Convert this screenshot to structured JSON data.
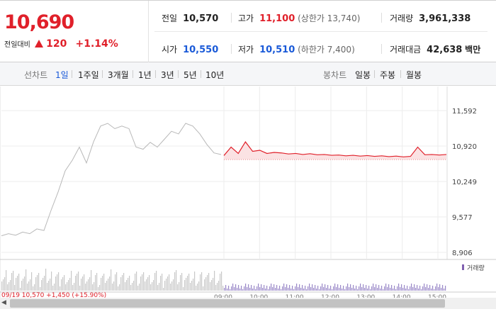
{
  "summary": {
    "price": "10,690",
    "change_label": "전일대비",
    "change_abs": "120",
    "change_pct": "+1.14%",
    "prev_close": {
      "label": "전일",
      "value": "10,570"
    },
    "open": {
      "label": "시가",
      "value": "10,550"
    },
    "high": {
      "label": "고가",
      "value": "11,100",
      "limit_note": "(상한가 13,740)"
    },
    "low": {
      "label": "저가",
      "value": "10,510",
      "limit_note": "(하한가 7,400)"
    },
    "volume": {
      "label": "거래량",
      "value": "3,961,338"
    },
    "trade_value": {
      "label": "거래대금",
      "value": "42,638",
      "unit": "백만"
    },
    "colors": {
      "up": "#e0202a",
      "down": "#1a5ad8"
    }
  },
  "toolbar": {
    "line_label": "선차트",
    "line_periods": [
      "1일",
      "1주일",
      "3개월",
      "1년",
      "3년",
      "5년",
      "10년"
    ],
    "active_period": "1일",
    "candle_label": "봉차트",
    "candle_periods": [
      "일봉",
      "주봉",
      "월봉"
    ]
  },
  "chart_data": {
    "type": "line",
    "y_ticks": [
      "11,592",
      "10,920",
      "10,249",
      "9,577",
      "8,906"
    ],
    "ylim": [
      8906,
      11592
    ],
    "x_ticks": [
      "09:00",
      "10:00",
      "11:00",
      "12:00",
      "13:00",
      "14:00",
      "15:00"
    ],
    "baseline": 10664,
    "prev_day_values": [
      9220,
      9260,
      9230,
      9290,
      9260,
      9350,
      9320,
      9700,
      10050,
      10450,
      10650,
      10900,
      10600,
      11000,
      11300,
      11350,
      11250,
      11300,
      11250,
      10900,
      10860,
      10990,
      10900,
      11050,
      11200,
      11150,
      11350,
      11300,
      11150,
      10950,
      10790,
      10760
    ],
    "today_values": [
      10740,
      10900,
      10780,
      11000,
      10820,
      10840,
      10780,
      10800,
      10790,
      10770,
      10780,
      10760,
      10775,
      10755,
      10760,
      10745,
      10750,
      10735,
      10745,
      10730,
      10740,
      10725,
      10735,
      10720,
      10730,
      10715,
      10725,
      10900,
      10755,
      10760,
      10750,
      10760
    ],
    "volume_label": "거래량",
    "footer_text": "09/19  10,570  +1,450 (+15.90%)"
  }
}
